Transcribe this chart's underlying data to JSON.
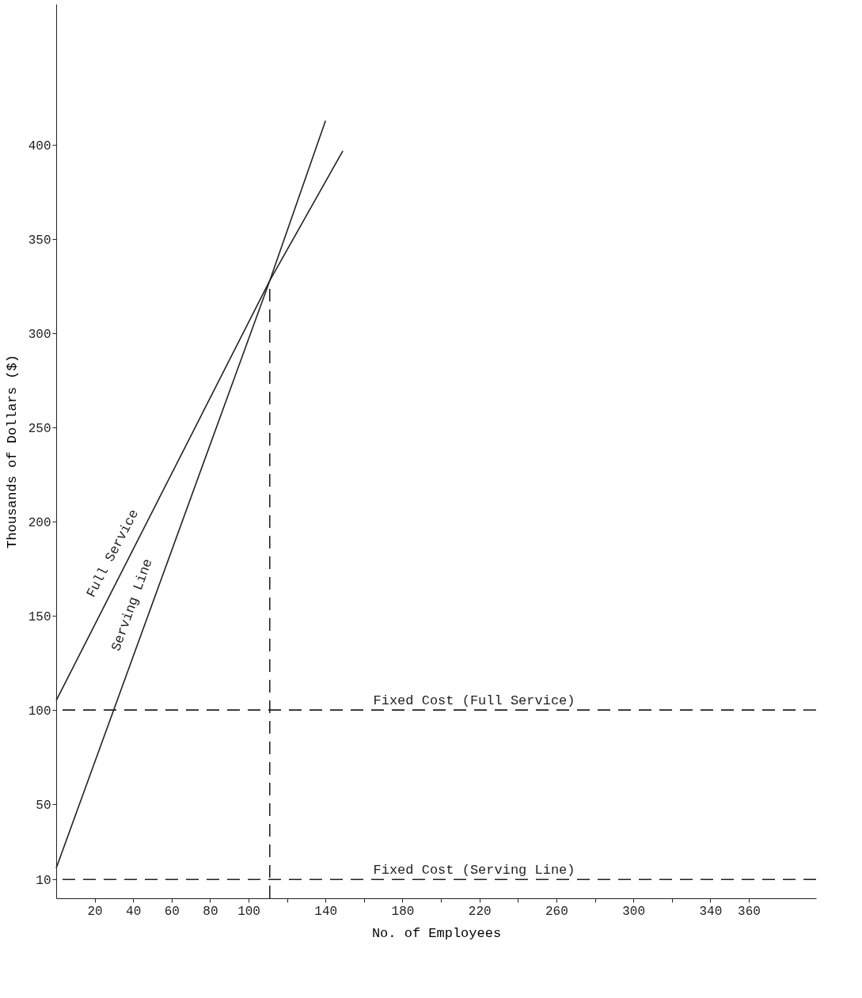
{
  "chart_data": {
    "type": "line",
    "xlabel": "No. of Employees",
    "ylabel": "Thousands of Dollars ($)",
    "series": [
      {
        "name": "Full Service",
        "color": "#222222",
        "x": [
          0,
          111,
          149
        ],
        "values": [
          105,
          328,
          397
        ]
      },
      {
        "name": "Serving Line",
        "color": "#222222",
        "x": [
          0,
          111,
          140
        ],
        "values": [
          16,
          328,
          413
        ]
      },
      {
        "color": "#222222",
        "x": [
          111,
          111
        ],
        "values": [
          0,
          328
        ],
        "line_style": "dashed"
      }
    ],
    "ref_lines": [
      {
        "axis": "y",
        "value": 100,
        "label": "Fixed Cost (Full Service)",
        "color": "#222222",
        "line_style": "dashed"
      },
      {
        "axis": "y",
        "value": 10,
        "label": "Fixed Cost (Serving Line)",
        "color": "#222222",
        "line_style": "dashed"
      }
    ],
    "xlim": [
      0,
      395
    ],
    "ylim": [
      0,
      475
    ],
    "xticks": [
      20,
      40,
      60,
      80,
      100,
      {
        "value": 120,
        "label": null
      },
      140,
      {
        "value": 160,
        "label": null
      },
      180,
      {
        "value": 200,
        "label": null
      },
      220,
      {
        "value": 240,
        "label": null
      },
      260,
      {
        "value": 280,
        "label": null
      },
      300,
      {
        "value": 320,
        "label": null
      },
      340,
      360
    ],
    "yticks": [
      10,
      50,
      100,
      150,
      200,
      250,
      300,
      350,
      400
    ],
    "grid": false,
    "marker": "none",
    "line_style": "solid"
  }
}
